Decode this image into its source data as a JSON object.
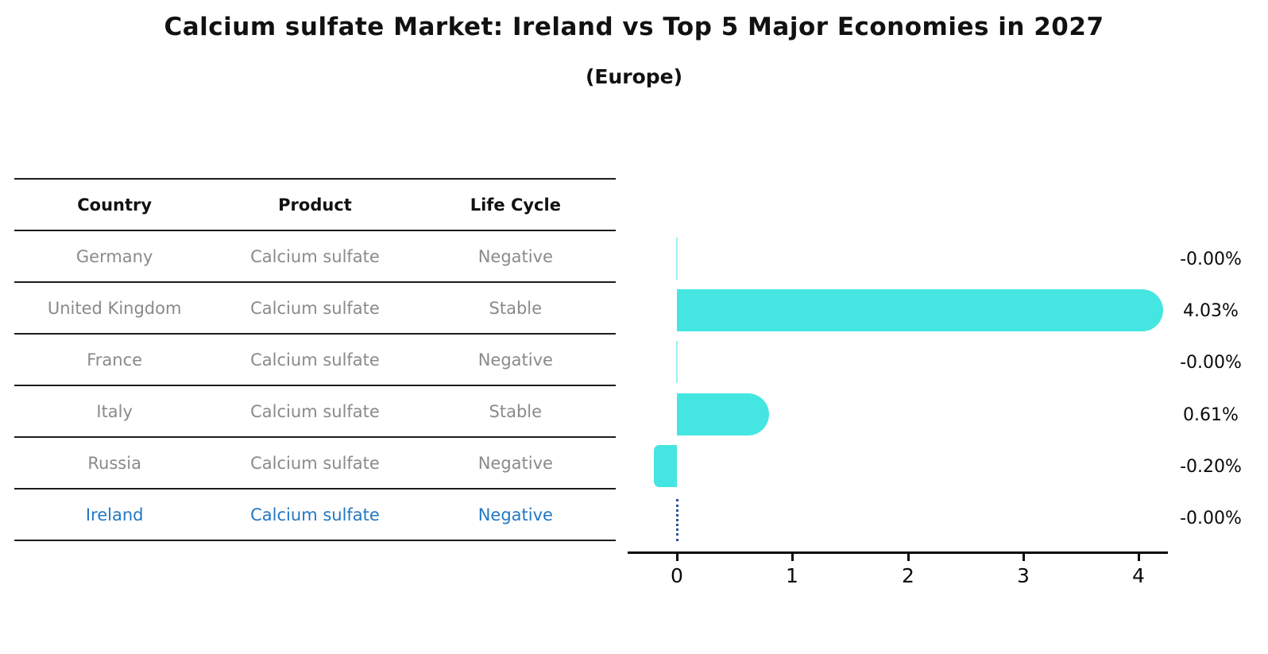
{
  "title": "Calcium sulfate Market: Ireland vs Top 5 Major Economies in 2027",
  "subtitle": "(Europe)",
  "table": {
    "headers": [
      "Country",
      "Product",
      "Life Cycle"
    ],
    "rows": [
      {
        "country": "Germany",
        "product": "Calcium sulfate",
        "life_cycle": "Negative",
        "highlight": false
      },
      {
        "country": "United Kingdom",
        "product": "Calcium sulfate",
        "life_cycle": "Stable",
        "highlight": false
      },
      {
        "country": "France",
        "product": "Calcium sulfate",
        "life_cycle": "Negative",
        "highlight": false
      },
      {
        "country": "Italy",
        "product": "Calcium sulfate",
        "life_cycle": "Stable",
        "highlight": false
      },
      {
        "country": "Russia",
        "product": "Calcium sulfate",
        "life_cycle": "Negative",
        "highlight": true
      }
    ]
  },
  "chart_data": {
    "type": "bar",
    "orientation": "horizontal",
    "categories": [
      "Germany",
      "United Kingdom",
      "France",
      "Italy",
      "Russia",
      "Ireland"
    ],
    "values": [
      -0.0,
      4.03,
      -0.0,
      0.61,
      -0.2,
      -0.0
    ],
    "value_labels": [
      "-0.00%",
      "4.03%",
      "-0.00%",
      "0.61%",
      "-0.20%",
      "-0.00%"
    ],
    "x_ticks": [
      "0",
      "1",
      "2",
      "3",
      "4"
    ],
    "xlim": [
      -0.45,
      4.25
    ],
    "grid": false,
    "legend": "none",
    "bar_color": "#45e6e1",
    "highlight_index": 5,
    "highlight_marker": "dotted-vertical-line",
    "highlight_color": "#2e4f9e",
    "value_unit": "%"
  },
  "colors": {
    "bar": "#45e6e1",
    "highlight_text": "#2377c4",
    "highlight_line": "#2e4f9e",
    "row_text": "#8a8a8a",
    "axis": "#0a0a0a",
    "table_line": "#1c1c1c"
  }
}
